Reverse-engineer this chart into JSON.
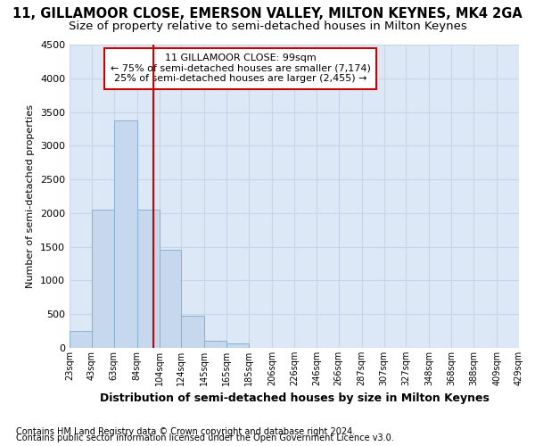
{
  "title1": "11, GILLAMOOR CLOSE, EMERSON VALLEY, MILTON KEYNES, MK4 2GA",
  "title2": "Size of property relative to semi-detached houses in Milton Keynes",
  "xlabel": "Distribution of semi-detached houses by size in Milton Keynes",
  "ylabel": "Number of semi-detached properties",
  "footnote1": "Contains HM Land Registry data © Crown copyright and database right 2024.",
  "footnote2": "Contains public sector information licensed under the Open Government Licence v3.0.",
  "annotation_line1": "11 GILLAMOOR CLOSE: 99sqm",
  "annotation_line2": "← 75% of semi-detached houses are smaller (7,174)",
  "annotation_line3": "25% of semi-detached houses are larger (2,455) →",
  "bin_edges": [
    23,
    43,
    63,
    84,
    104,
    124,
    145,
    165,
    185,
    206,
    226,
    246,
    266,
    287,
    307,
    327,
    348,
    368,
    388,
    409,
    429
  ],
  "bin_labels": [
    "23sqm",
    "43sqm",
    "63sqm",
    "84sqm",
    "104sqm",
    "124sqm",
    "145sqm",
    "165sqm",
    "185sqm",
    "206sqm",
    "226sqm",
    "246sqm",
    "266sqm",
    "287sqm",
    "307sqm",
    "327sqm",
    "348sqm",
    "368sqm",
    "388sqm",
    "409sqm",
    "429sqm"
  ],
  "bar_heights": [
    250,
    2050,
    3375,
    2050,
    1450,
    480,
    100,
    60,
    0,
    0,
    0,
    0,
    0,
    0,
    0,
    0,
    0,
    0,
    0,
    0
  ],
  "bar_color": "#c5d8ee",
  "bar_edge_color": "#8ab0d0",
  "vline_color": "#cc0000",
  "vline_x": 99,
  "ylim": [
    0,
    4500
  ],
  "yticks": [
    0,
    500,
    1000,
    1500,
    2000,
    2500,
    3000,
    3500,
    4000,
    4500
  ],
  "grid_color": "#c8d4e8",
  "background_color": "#dce8f5",
  "fig_background": "#ffffff",
  "annotation_box_color": "#ffffff",
  "annotation_box_edge": "#cc0000",
  "title1_fontsize": 10.5,
  "title2_fontsize": 9.5,
  "xlabel_fontsize": 9,
  "ylabel_fontsize": 8,
  "footnote_fontsize": 7
}
